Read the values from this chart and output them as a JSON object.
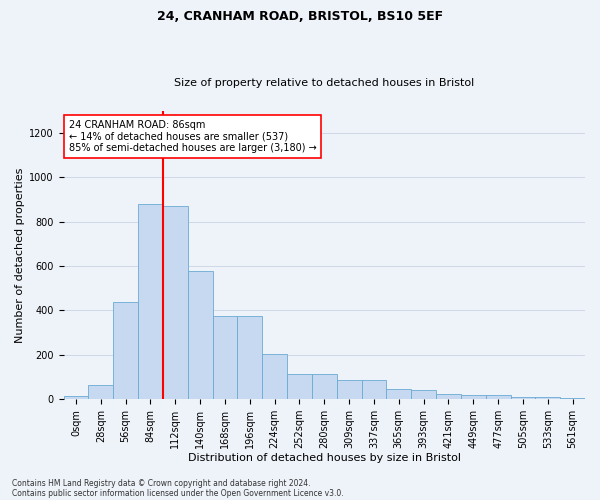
{
  "title1": "24, CRANHAM ROAD, BRISTOL, BS10 5EF",
  "title2": "Size of property relative to detached houses in Bristol",
  "xlabel": "Distribution of detached houses by size in Bristol",
  "ylabel": "Number of detached properties",
  "footnote1": "Contains HM Land Registry data © Crown copyright and database right 2024.",
  "footnote2": "Contains public sector information licensed under the Open Government Licence v3.0.",
  "bar_labels": [
    "0sqm",
    "28sqm",
    "56sqm",
    "84sqm",
    "112sqm",
    "140sqm",
    "168sqm",
    "196sqm",
    "224sqm",
    "252sqm",
    "280sqm",
    "309sqm",
    "337sqm",
    "365sqm",
    "393sqm",
    "421sqm",
    "449sqm",
    "477sqm",
    "505sqm",
    "533sqm",
    "561sqm"
  ],
  "bar_values": [
    12,
    65,
    440,
    880,
    870,
    580,
    375,
    375,
    205,
    115,
    115,
    85,
    85,
    45,
    40,
    25,
    20,
    18,
    10,
    8,
    5
  ],
  "bar_color": "#c6d9f0",
  "bar_edge_color": "#6aaad4",
  "grid_color": "#d0d8e8",
  "vline_color": "red",
  "vline_linewidth": 1.5,
  "vline_index": 3.5,
  "annotation_text": "24 CRANHAM ROAD: 86sqm\n← 14% of detached houses are smaller (537)\n85% of semi-detached houses are larger (3,180) →",
  "annotation_box_facecolor": "white",
  "annotation_box_edgecolor": "red",
  "yticks": [
    0,
    200,
    400,
    600,
    800,
    1000,
    1200
  ],
  "ylim": [
    0,
    1300
  ],
  "background_color": "#eef2f9",
  "title1_fontsize": 9,
  "title2_fontsize": 8,
  "xlabel_fontsize": 8,
  "ylabel_fontsize": 8,
  "tick_fontsize": 7,
  "annotation_fontsize": 7,
  "footnote_fontsize": 5.5
}
